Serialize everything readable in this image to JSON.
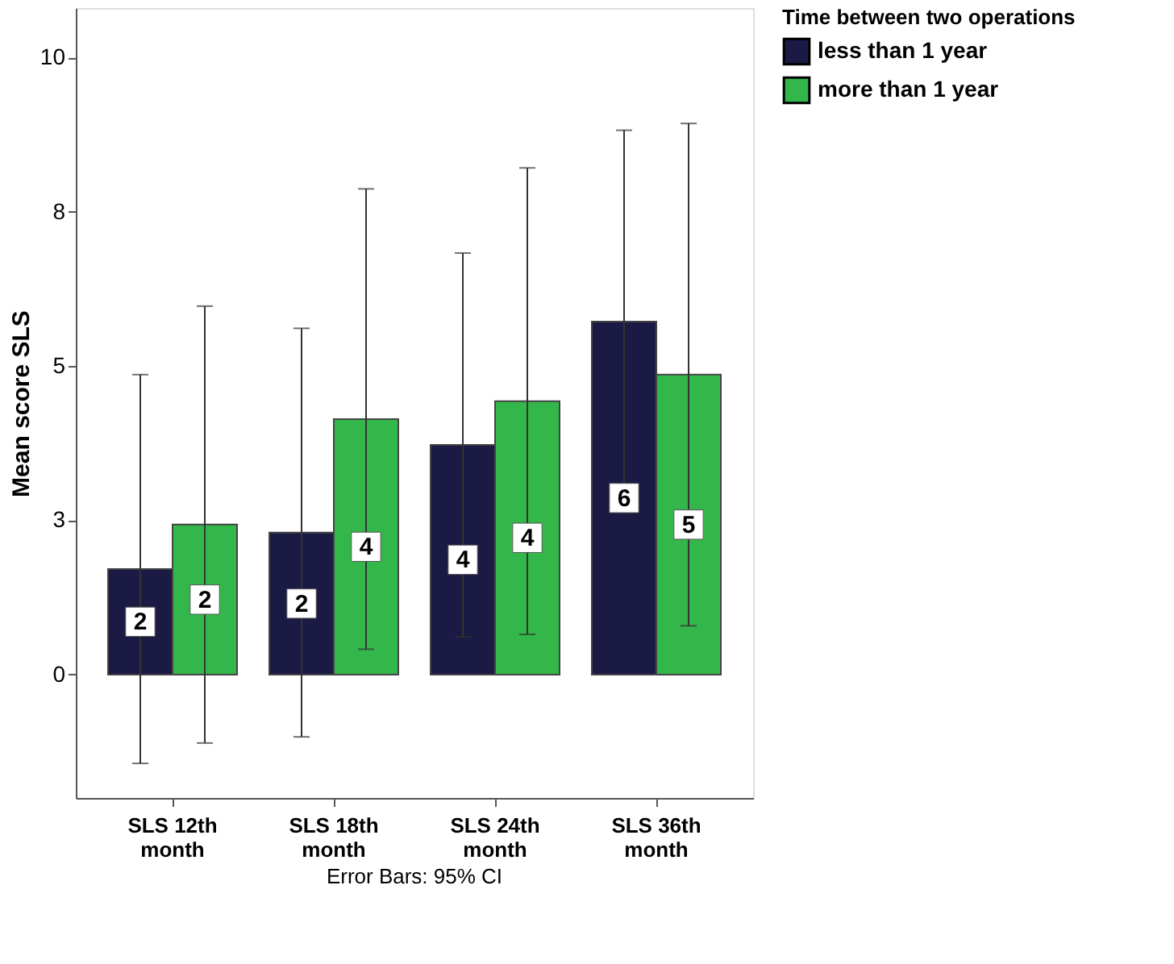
{
  "chart_data": {
    "type": "bar",
    "ylabel": "Mean score SLS",
    "legend_title": "Time between two operations",
    "legend": "top right",
    "grid": false,
    "categories": [
      "SLS 12th month",
      "SLS 18th month",
      "SLS 24th month",
      "SLS 36th month"
    ],
    "series": [
      {
        "name": "less than 1 year",
        "color": "#1a1a44",
        "values": [
          1.71,
          2.3,
          3.72,
          5.72
        ],
        "errors": [
          3.15,
          3.31,
          3.11,
          3.1
        ],
        "value_labels": [
          "2",
          "2",
          "4",
          "6"
        ]
      },
      {
        "name": "more than 1 year",
        "color": "#33b74a",
        "values": [
          2.43,
          4.14,
          4.43,
          4.86
        ],
        "errors": [
          3.54,
          3.73,
          3.78,
          4.07
        ],
        "value_labels": [
          "2",
          "4",
          "4",
          "5"
        ]
      }
    ],
    "ylim": [
      -2,
      10.8
    ],
    "yticks": [
      0,
      {
        "value": 2.5,
        "label": "3"
      },
      5,
      {
        "value": 7.5,
        "label": "8"
      },
      10
    ],
    "annotations": [
      "Error Bars: 95% CI"
    ]
  }
}
